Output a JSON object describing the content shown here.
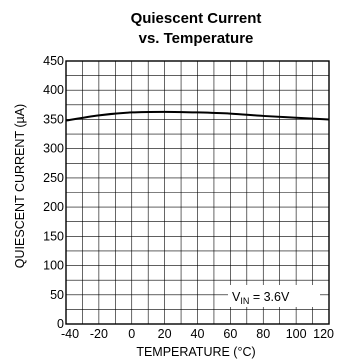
{
  "chart_data": {
    "type": "line",
    "title_line1": "Quiescent Current",
    "title_line2": "vs. Temperature",
    "xlabel": "TEMPERATURE (°C)",
    "ylabel": "QUIESCENT CURRENT (µA)",
    "xlim": [
      -40,
      120
    ],
    "ylim": [
      0,
      450
    ],
    "x_ticks": [
      -40,
      -20,
      0,
      20,
      40,
      60,
      80,
      100,
      120
    ],
    "y_ticks": [
      0,
      50,
      100,
      150,
      200,
      250,
      300,
      350,
      400,
      450
    ],
    "x_tick_labels": [
      "-40",
      "-20",
      "0",
      "20",
      "40",
      "60",
      "80",
      "100",
      "120"
    ],
    "y_tick_labels": [
      "0",
      "50",
      "100",
      "150",
      "200",
      "250",
      "300",
      "350",
      "400",
      "450"
    ],
    "grid": true,
    "annotation": {
      "main": "V",
      "sub": "IN",
      "rest": " = 3.6V"
    },
    "series": [
      {
        "x": [
          -40,
          -20,
          0,
          20,
          40,
          60,
          80,
          100,
          120
        ],
        "y": [
          348,
          357,
          362,
          363,
          362,
          360,
          356,
          353,
          350
        ]
      }
    ],
    "colors": {
      "line": "#000000",
      "grid": "#000000",
      "background": "#ffffff"
    }
  }
}
